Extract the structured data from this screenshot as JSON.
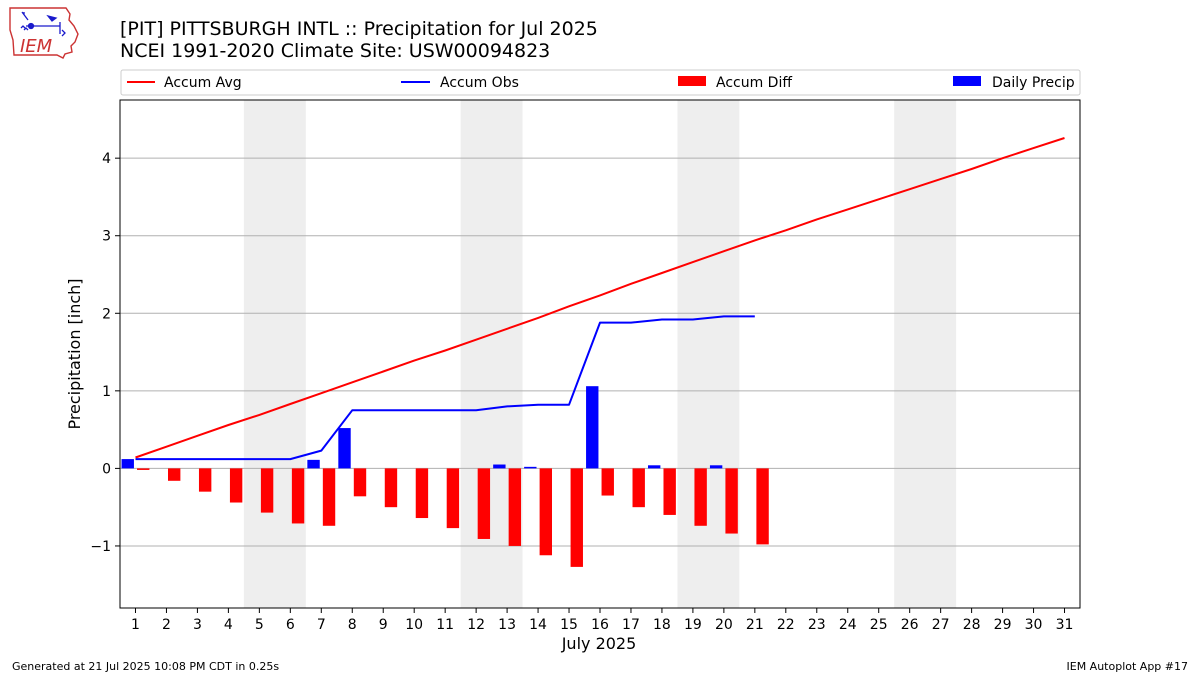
{
  "logo": {
    "text": "IEM"
  },
  "footer": {
    "left": "Generated at 21 Jul 2025 10:08 PM CDT in 0.25s",
    "right": "IEM Autoplot App #17"
  },
  "colors": {
    "avg": "#ff0000",
    "obs": "#0000ff",
    "diff": "#ff0000",
    "daily": "#0000ff",
    "weekend": "#eeeeee",
    "grid": "#b0b0b0"
  },
  "chart_data": {
    "type": "bar",
    "title": "[PIT] PITTSBURGH INTL :: Precipitation for Jul 2025",
    "subtitle": "NCEI 1991-2020 Climate Site: USW00094823",
    "xlabel": "July 2025",
    "ylabel": "Precipitation [inch]",
    "xlim": [
      0.5,
      31.5
    ],
    "ylim": [
      -1.8,
      4.75
    ],
    "x_ticks": [
      1,
      2,
      3,
      4,
      5,
      6,
      7,
      8,
      9,
      10,
      11,
      12,
      13,
      14,
      15,
      16,
      17,
      18,
      19,
      20,
      21,
      22,
      23,
      24,
      25,
      26,
      27,
      28,
      29,
      30,
      31
    ],
    "y_ticks": [
      -1,
      0,
      1,
      2,
      3,
      4
    ],
    "y_tick_labels": [
      "−1",
      "0",
      "1",
      "2",
      "3",
      "4"
    ],
    "grid": true,
    "legend": [
      {
        "label": "Accum Avg",
        "kind": "line",
        "color": "#ff0000"
      },
      {
        "label": "Accum Obs",
        "kind": "line",
        "color": "#0000ff"
      },
      {
        "label": "Accum Diff",
        "kind": "bar",
        "color": "#ff0000"
      },
      {
        "label": "Daily Precip",
        "kind": "bar",
        "color": "#0000ff"
      }
    ],
    "weekend_spans": [
      [
        4.5,
        6.5
      ],
      [
        11.5,
        13.5
      ],
      [
        18.5,
        20.5
      ],
      [
        25.5,
        27.5
      ]
    ],
    "series": [
      {
        "name": "Accum Avg",
        "type": "line",
        "x": [
          1,
          2,
          3,
          4,
          5,
          6,
          7,
          8,
          9,
          10,
          11,
          12,
          13,
          14,
          15,
          16,
          17,
          18,
          19,
          20,
          21,
          22,
          23,
          24,
          25,
          26,
          27,
          28,
          29,
          30,
          31
        ],
        "values": [
          0.14,
          0.28,
          0.42,
          0.56,
          0.69,
          0.83,
          0.97,
          1.11,
          1.25,
          1.39,
          1.52,
          1.66,
          1.8,
          1.94,
          2.09,
          2.23,
          2.38,
          2.52,
          2.66,
          2.8,
          2.94,
          3.07,
          3.21,
          3.34,
          3.47,
          3.6,
          3.73,
          3.86,
          4.0,
          4.13,
          4.26
        ]
      },
      {
        "name": "Accum Obs",
        "type": "line",
        "x": [
          1,
          2,
          3,
          4,
          5,
          6,
          7,
          8,
          9,
          10,
          11,
          12,
          13,
          14,
          15,
          16,
          17,
          18,
          19,
          20,
          21
        ],
        "values": [
          0.12,
          0.12,
          0.12,
          0.12,
          0.12,
          0.12,
          0.23,
          0.75,
          0.75,
          0.75,
          0.75,
          0.75,
          0.8,
          0.82,
          0.82,
          1.88,
          1.88,
          1.92,
          1.92,
          1.96,
          1.96
        ]
      },
      {
        "name": "Accum Diff",
        "type": "bar",
        "x": [
          1,
          2,
          3,
          4,
          5,
          6,
          7,
          8,
          9,
          10,
          11,
          12,
          13,
          14,
          15,
          16,
          17,
          18,
          19,
          20,
          21
        ],
        "values": [
          -0.02,
          -0.16,
          -0.3,
          -0.44,
          -0.57,
          -0.71,
          -0.74,
          -0.36,
          -0.5,
          -0.64,
          -0.77,
          -0.91,
          -1.0,
          -1.12,
          -1.27,
          -0.35,
          -0.5,
          -0.6,
          -0.74,
          -0.84,
          -0.98
        ]
      },
      {
        "name": "Daily Precip",
        "type": "bar",
        "x": [
          1,
          2,
          3,
          4,
          5,
          6,
          7,
          8,
          9,
          10,
          11,
          12,
          13,
          14,
          15,
          16,
          17,
          18,
          19,
          20,
          21
        ],
        "values": [
          0.12,
          0,
          0,
          0,
          0,
          0,
          0.11,
          0.52,
          0,
          0,
          0,
          0,
          0.05,
          0.02,
          0,
          1.06,
          0,
          0.04,
          0,
          0.04,
          0
        ]
      }
    ]
  }
}
